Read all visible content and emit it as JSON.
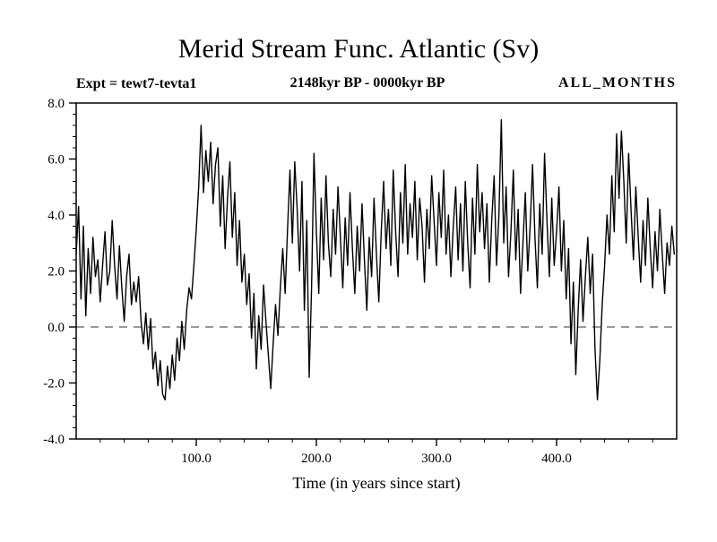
{
  "header": {
    "title": "Merid Stream Func. Atlantic (Sv)",
    "expt_label": "Expt = tewt7-tevta1",
    "period_label": "2148kyr BP - 0000kyr BP",
    "months_label": "ALL_MONTHS"
  },
  "chart_data": {
    "type": "line",
    "title": "Merid Stream Func. Atlantic (Sv)",
    "subtitle": "2148kyr BP - 0000kyr BP",
    "annotations": [
      "Expt = tewt7-tevta1",
      "ALL_MONTHS"
    ],
    "xlabel": "Time (in years since start)",
    "ylabel": "",
    "xlim": [
      0,
      500
    ],
    "ylim": [
      -4.0,
      8.0
    ],
    "x_ticks": [
      100,
      200,
      300,
      400
    ],
    "y_ticks": [
      -4.0,
      -2.0,
      0.0,
      2.0,
      4.0,
      6.0,
      8.0
    ],
    "x_minor_step": 20,
    "y_minor_step": 0.4,
    "grid": false,
    "legend": "none",
    "line_color": "#000000",
    "zero_line": {
      "y": 0.0,
      "style": "dashed"
    },
    "series_name": "Meridional stream function (Sv)",
    "x_start": 0,
    "x_step": 2,
    "values": [
      2.6,
      4.3,
      1.0,
      3.6,
      0.4,
      2.8,
      1.2,
      3.2,
      1.8,
      2.4,
      0.9,
      2.2,
      3.4,
      1.5,
      2.0,
      3.8,
      2.2,
      1.0,
      2.9,
      1.4,
      0.2,
      1.8,
      2.6,
      0.8,
      1.6,
      0.9,
      1.8,
      0.2,
      -0.6,
      0.5,
      -0.8,
      0.3,
      -1.5,
      -0.9,
      -2.1,
      -1.2,
      -2.4,
      -2.6,
      -1.4,
      -2.2,
      -1.0,
      -1.9,
      -0.4,
      -1.2,
      0.2,
      -0.8,
      0.6,
      1.4,
      1.0,
      2.2,
      3.5,
      5.0,
      7.2,
      4.8,
      6.3,
      5.2,
      6.6,
      4.4,
      5.8,
      6.4,
      3.6,
      5.4,
      2.8,
      4.6,
      5.9,
      3.2,
      4.8,
      2.2,
      3.8,
      1.6,
      2.6,
      0.8,
      1.9,
      -0.4,
      1.2,
      -1.5,
      0.4,
      -0.8,
      1.5,
      0.2,
      -1.0,
      -2.2,
      -0.6,
      0.8,
      -0.3,
      1.4,
      2.8,
      1.2,
      3.5,
      5.6,
      3.0,
      5.9,
      4.2,
      2.0,
      5.2,
      0.6,
      3.8,
      -1.8,
      1.4,
      6.2,
      3.4,
      1.2,
      4.6,
      2.4,
      5.4,
      3.0,
      1.8,
      4.2,
      2.6,
      5.0,
      3.2,
      1.4,
      3.9,
      2.2,
      4.8,
      2.8,
      1.2,
      3.6,
      2.0,
      4.4,
      2.4,
      0.6,
      3.2,
      1.8,
      4.6,
      2.6,
      0.9,
      3.4,
      5.2,
      2.8,
      4.2,
      2.2,
      5.6,
      3.4,
      1.8,
      4.8,
      3.0,
      5.8,
      2.6,
      4.4,
      3.2,
      5.2,
      2.4,
      4.6,
      3.6,
      1.6,
      4.2,
      2.8,
      5.4,
      3.8,
      2.2,
      4.8,
      3.2,
      5.6,
      2.6,
      4.0,
      1.8,
      3.6,
      5.0,
      2.4,
      4.4,
      2.0,
      5.2,
      3.0,
      1.4,
      4.6,
      2.6,
      5.8,
      3.4,
      4.8,
      2.8,
      4.4,
      1.6,
      3.8,
      5.4,
      2.2,
      4.0,
      7.4,
      3.0,
      5.0,
      1.8,
      3.4,
      5.6,
      2.4,
      4.2,
      1.2,
      3.0,
      4.8,
      2.0,
      3.6,
      5.8,
      3.2,
      1.4,
      4.4,
      2.6,
      6.2,
      3.8,
      1.8,
      4.6,
      2.2,
      3.4,
      5.0,
      2.0,
      3.8,
      1.0,
      2.8,
      -0.6,
      1.6,
      -1.7,
      0.6,
      2.4,
      0.2,
      1.8,
      3.2,
      1.2,
      2.6,
      -0.8,
      -2.6,
      -1.2,
      0.8,
      2.2,
      4.0,
      2.6,
      5.4,
      3.4,
      6.9,
      4.6,
      7.0,
      5.2,
      3.0,
      6.2,
      4.2,
      2.4,
      5.0,
      3.2,
      1.6,
      3.8,
      2.2,
      4.6,
      2.8,
      1.4,
      3.4,
      2.0,
      4.2,
      2.6,
      1.2,
      3.0,
      2.2,
      3.6,
      2.6
    ]
  }
}
